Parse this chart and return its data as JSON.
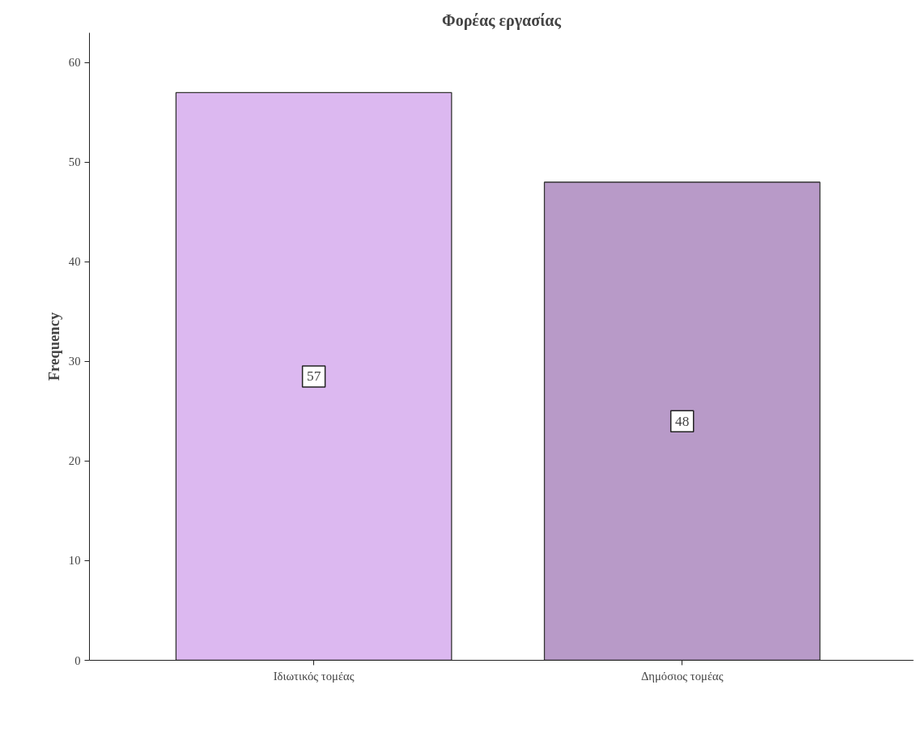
{
  "chart_data": {
    "type": "bar",
    "title": "Φορέας εργασίας",
    "ylabel": "Frequency",
    "categories": [
      "Ιδιωτικός τομέας",
      "Δημόσιος τομέας"
    ],
    "values": [
      57,
      48
    ],
    "colors": [
      "#dcb8f0",
      "#b89ac8"
    ],
    "ylim": [
      0,
      63
    ],
    "yticks": [
      0,
      10,
      20,
      30,
      40,
      50,
      60
    ],
    "data_labels": true,
    "grid": false
  }
}
